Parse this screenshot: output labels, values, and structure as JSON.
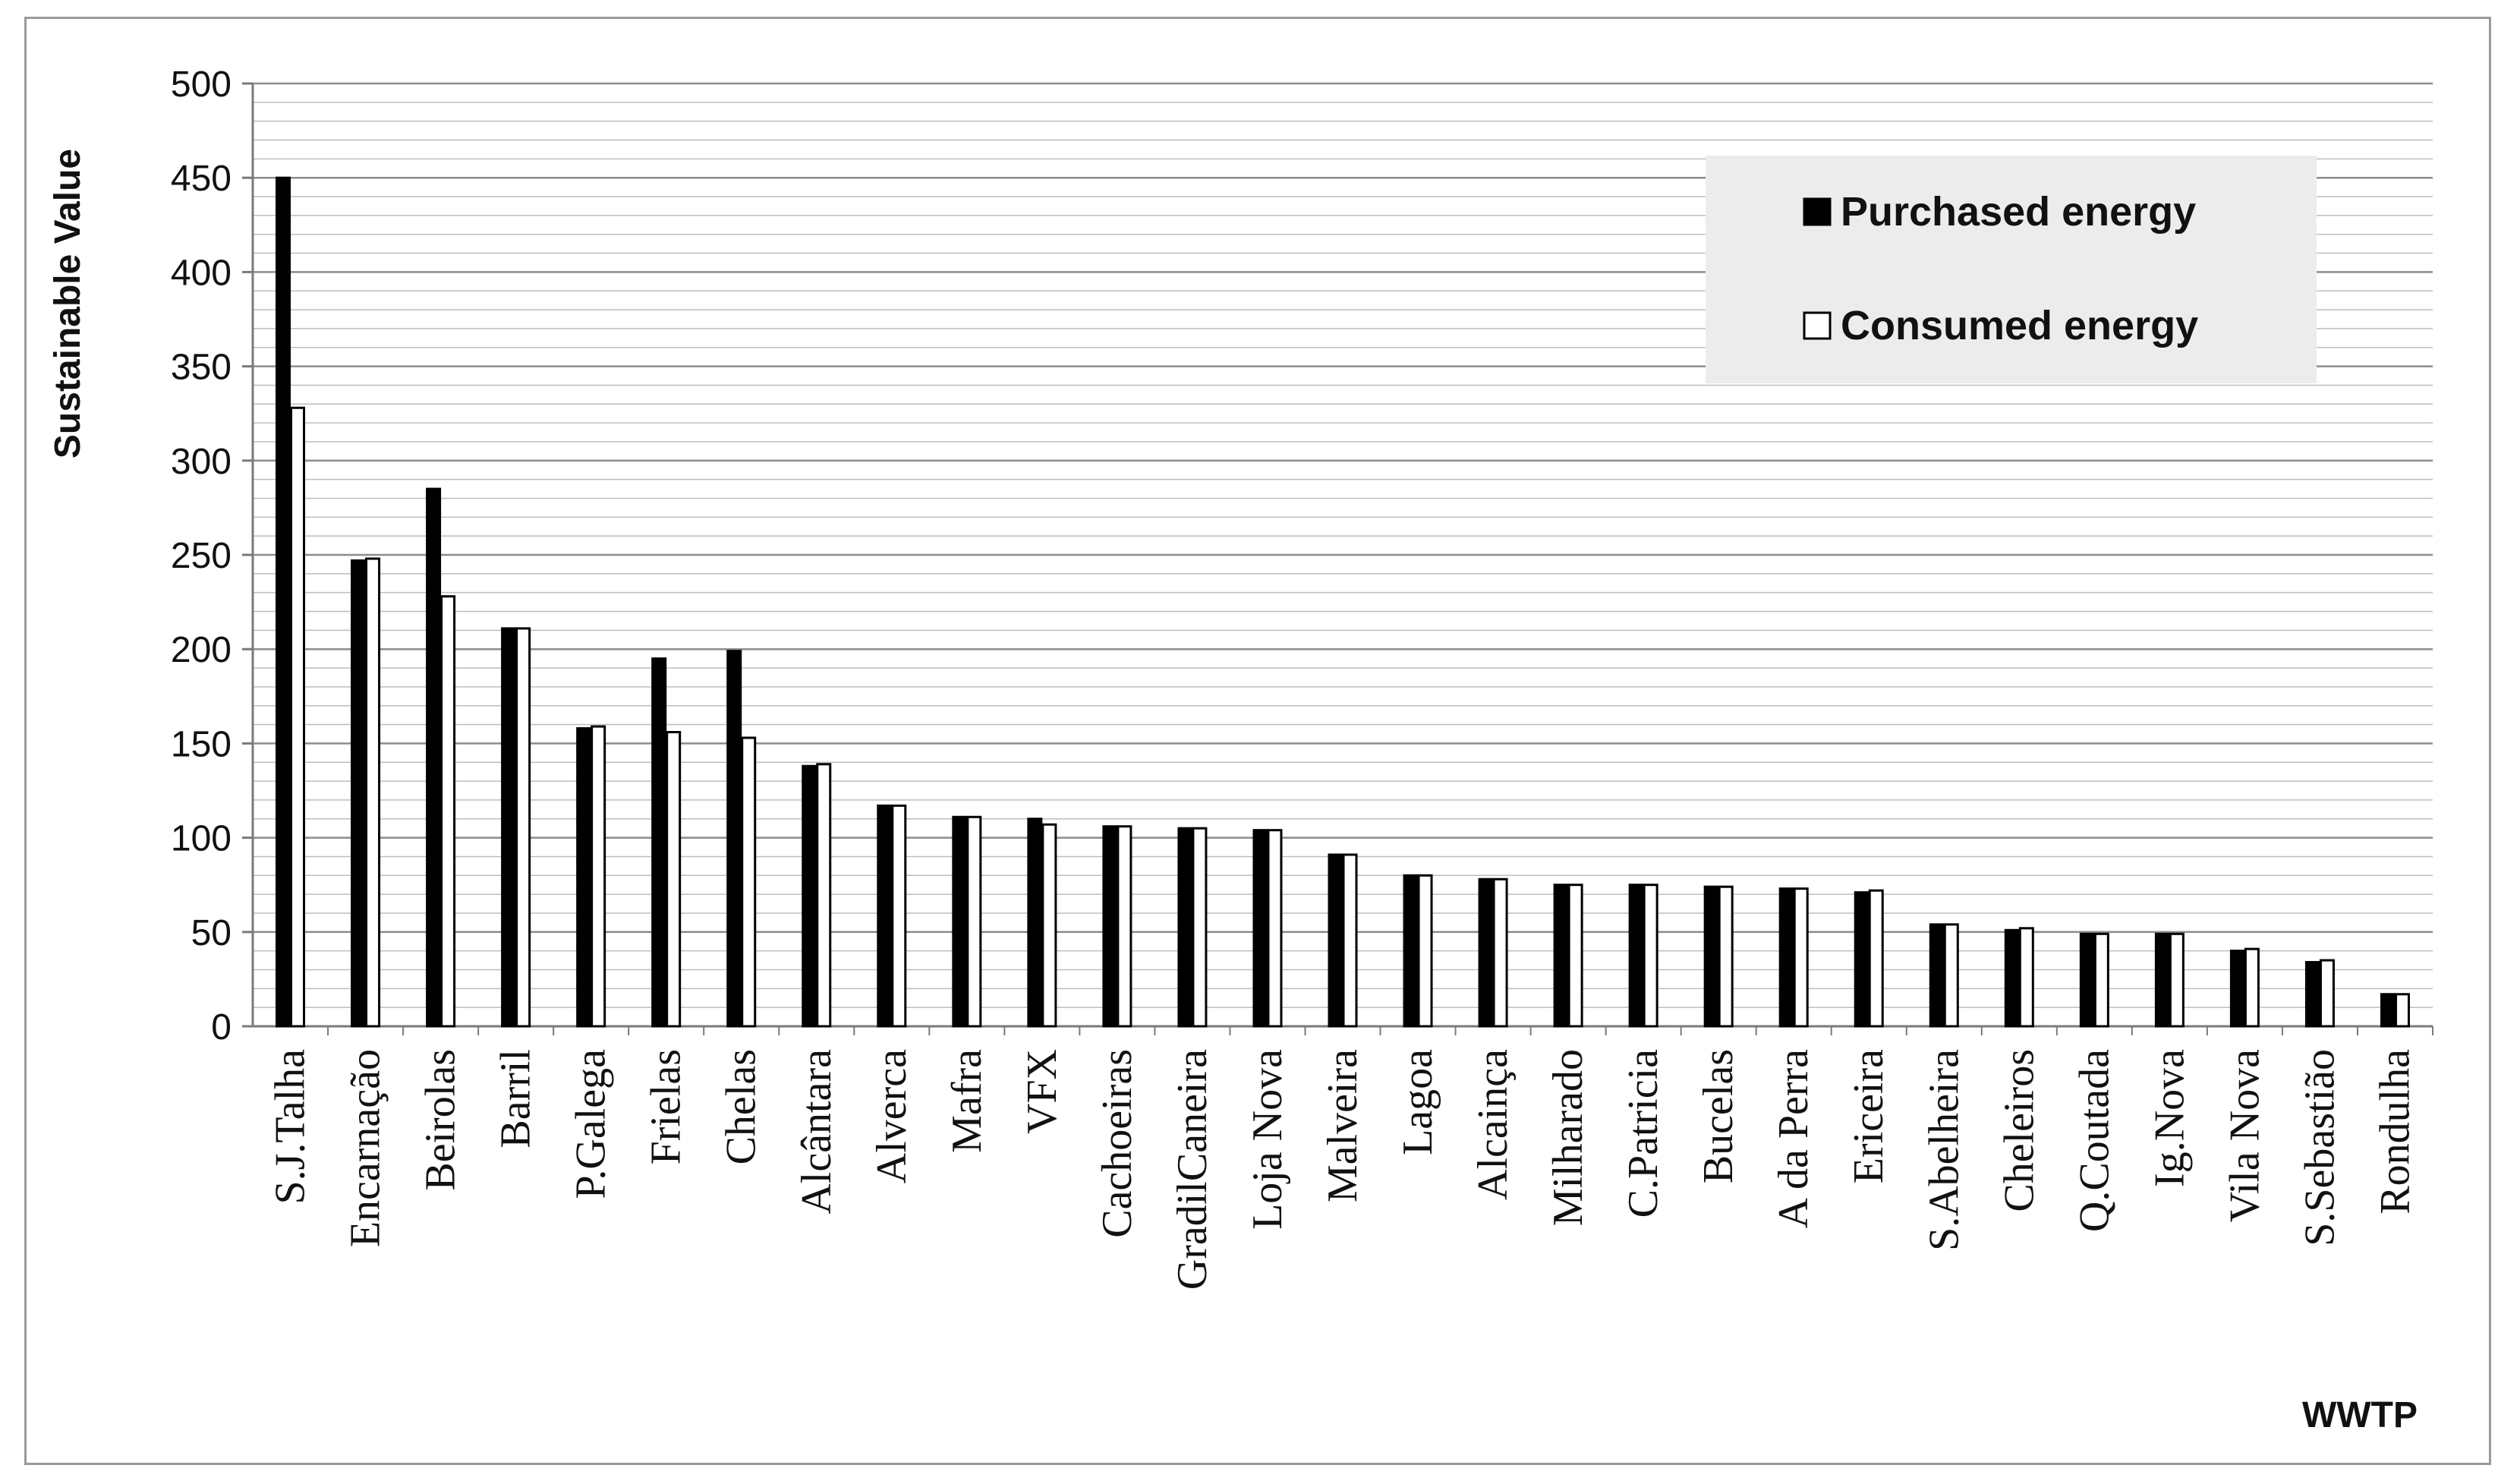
{
  "chart_data": {
    "type": "bar",
    "title": "",
    "xlabel": "WWTP",
    "ylabel": "Sustainable Value",
    "ylim": [
      0,
      500
    ],
    "yticks": [
      0,
      50,
      100,
      150,
      200,
      250,
      300,
      350,
      400,
      450,
      500
    ],
    "minor_grid_step": 10,
    "grid": true,
    "legend_position": "top-right",
    "categories": [
      "S.J.Talha",
      "Encarnação",
      "Beirolas",
      "Barril",
      "P.Galega",
      "Frielas",
      "Chelas",
      "Alcântara",
      "Alverca",
      "Mafra",
      "VFX",
      "Cachoeiras",
      "GradilCaneira",
      "Loja Nova",
      "Malveira",
      "Lagoa",
      "Alcainça",
      "Milharado",
      "C.Patricia",
      "Bucelas",
      "A da Perra",
      "Ericeira",
      "S.Abelheira",
      "Cheleiros",
      "Q.Coutada",
      "Ig.Nova",
      "Vila Nova",
      "S.Sebastião",
      "Rondulha"
    ],
    "series": [
      {
        "name": "Purchased energy",
        "color": "#000000",
        "values": [
          450,
          247,
          285,
          211,
          158,
          195,
          199,
          138,
          117,
          111,
          110,
          106,
          105,
          104,
          91,
          80,
          78,
          75,
          75,
          74,
          73,
          71,
          54,
          51,
          49,
          49,
          40,
          34,
          17
        ]
      },
      {
        "name": "Consumed energy",
        "color": "#ffffff",
        "values": [
          328,
          248,
          228,
          211,
          159,
          156,
          153,
          139,
          117,
          111,
          107,
          106,
          105,
          104,
          91,
          80,
          78,
          75,
          75,
          74,
          73,
          72,
          54,
          52,
          49,
          49,
          41,
          35,
          17
        ]
      }
    ]
  }
}
